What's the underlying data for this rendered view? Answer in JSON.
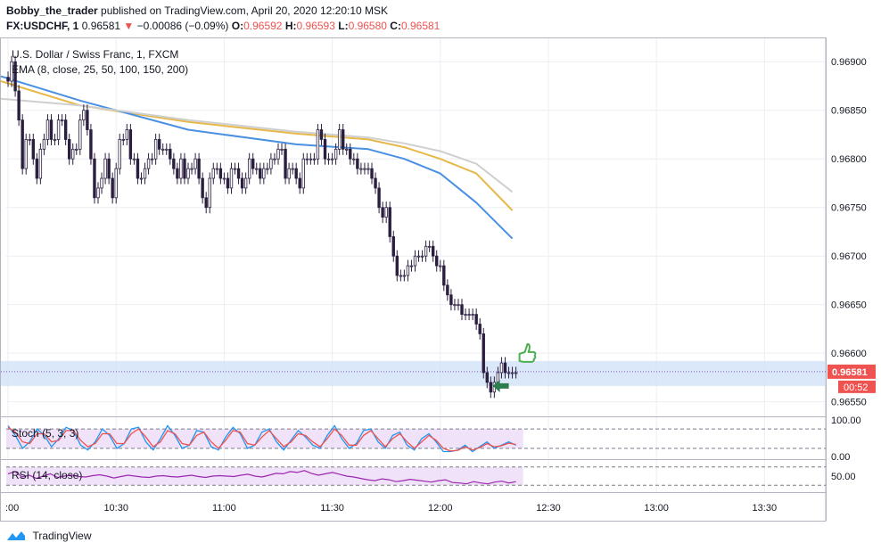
{
  "header": {
    "author": "Bobby_the_trader",
    "published": "published on TradingView.com, April 20, 2020 12:20:10 MSK",
    "symbol": "FX:USDCHF, 1",
    "last": "0.96581",
    "change_arrow": "▼",
    "change": "−0.00086 (−0.09%)",
    "o_label": "O:",
    "o_value": "0.96592",
    "h_label": "H:",
    "h_value": "0.96593",
    "l_label": "L:",
    "l_value": "0.96580",
    "c_label": "C:",
    "c_value": "0.96581"
  },
  "footer": {
    "brand": "TradingView",
    "logo_icon": "tradingview-logo-icon"
  },
  "colors": {
    "candle_down": "#2b1f3f",
    "candle_up": "#2b1f3f",
    "ema_25": "#e6b84a",
    "ema_50": "#4a90e2",
    "ema_100": "#9fc4ef",
    "ema_150": "#cfcfcf",
    "ema_200": "#d9d9d9",
    "stoch_k": "#2196f3",
    "stoch_d": "#ef5350",
    "rsi": "#9c27b0",
    "price_band": "#cfe0f7",
    "price_label_bg": "#ef5350",
    "thumb": "#4caf50",
    "arrow": "#2e7d4f"
  },
  "chart_data": [
    {
      "type": "candlestick",
      "title": "U.S. Dollar / Swiss Franc, 1, FXCM",
      "indicator_label": "EMA (8, close, 25, 50, 100, 150, 200)",
      "y_ticks": [
        0.969,
        0.9685,
        0.968,
        0.9675,
        0.967,
        0.9665,
        0.966,
        0.9655
      ],
      "y_tick_labels": [
        "0.96900",
        "0.96850",
        "0.96800",
        "0.96750",
        "0.96700",
        "0.96650",
        "0.96600",
        "0.96550"
      ],
      "ylim": [
        0.96535,
        0.96925
      ],
      "x_tick_labels": [
        ":00",
        "10:30",
        "11:00",
        "11:30",
        "12:00",
        "12:30",
        "13:00",
        "13:30"
      ],
      "x_tick_minutes": [
        0,
        30,
        60,
        90,
        120,
        150,
        180,
        210
      ],
      "x_range_minutes": [
        -0.5,
        227
      ],
      "last_price_label": "0.96581",
      "countdown_label": "00:52",
      "closes": [
        0.9688,
        0.969,
        0.9687,
        0.9684,
        0.9679,
        0.9682,
        0.9682,
        0.968,
        0.9678,
        0.9681,
        0.9682,
        0.9684,
        0.9682,
        0.9682,
        0.9684,
        0.9684,
        0.9682,
        0.968,
        0.9681,
        0.9681,
        0.9684,
        0.9685,
        0.9683,
        0.968,
        0.9676,
        0.9677,
        0.9678,
        0.968,
        0.9678,
        0.9676,
        0.9679,
        0.9682,
        0.9682,
        0.9683,
        0.968,
        0.968,
        0.9678,
        0.9678,
        0.9679,
        0.968,
        0.968,
        0.9682,
        0.9681,
        0.9681,
        0.9681,
        0.968,
        0.9679,
        0.9678,
        0.968,
        0.9678,
        0.9679,
        0.9679,
        0.968,
        0.9678,
        0.9676,
        0.9675,
        0.9678,
        0.9679,
        0.9679,
        0.9678,
        0.9678,
        0.9677,
        0.9679,
        0.9679,
        0.9678,
        0.9677,
        0.9678,
        0.968,
        0.9679,
        0.9679,
        0.9678,
        0.9679,
        0.9679,
        0.968,
        0.968,
        0.9681,
        0.9681,
        0.9678,
        0.9679,
        0.9679,
        0.9678,
        0.9677,
        0.968,
        0.968,
        0.968,
        0.968,
        0.9683,
        0.9682,
        0.968,
        0.968,
        0.968,
        0.9681,
        0.9683,
        0.9681,
        0.9681,
        0.968,
        0.968,
        0.9679,
        0.9679,
        0.9679,
        0.9679,
        0.9678,
        0.9677,
        0.9675,
        0.9674,
        0.9675,
        0.9672,
        0.967,
        0.9668,
        0.9668,
        0.9668,
        0.9669,
        0.9669,
        0.967,
        0.967,
        0.967,
        0.9671,
        0.9671,
        0.967,
        0.9669,
        0.9669,
        0.9667,
        0.9666,
        0.9665,
        0.9665,
        0.9665,
        0.9664,
        0.9664,
        0.9664,
        0.9664,
        0.9663,
        0.9662,
        0.9658,
        0.9657,
        0.9656,
        0.9657,
        0.9658,
        0.9659,
        0.9658,
        0.9658,
        0.9658,
        0.9658
      ],
      "series": [
        {
          "name": "EMA 25",
          "x": [
            -2,
            20,
            50,
            80,
            100,
            110,
            120,
            130,
            140
          ],
          "values": [
            0.9688,
            0.96855,
            0.96838,
            0.96826,
            0.9682,
            0.96812,
            0.968,
            0.96785,
            0.96747
          ]
        },
        {
          "name": "EMA 50",
          "x": [
            -2,
            20,
            50,
            80,
            100,
            110,
            120,
            130,
            140
          ],
          "values": [
            0.96885,
            0.9686,
            0.9683,
            0.96815,
            0.9681,
            0.968,
            0.96785,
            0.96755,
            0.96718
          ]
        },
        {
          "name": "EMA 150",
          "x": [
            -2,
            20,
            50,
            80,
            100,
            110,
            120,
            130,
            140
          ],
          "values": [
            0.96862,
            0.96855,
            0.9684,
            0.96828,
            0.96822,
            0.96816,
            0.96808,
            0.96795,
            0.96766
          ]
        }
      ]
    },
    {
      "type": "line",
      "title": "Stoch (5, 3, 3)",
      "y_tick_labels": [
        "100.00",
        "0.00"
      ],
      "ylim": [
        -5,
        105
      ],
      "series": [
        {
          "name": "%K",
          "values": [
            90,
            60,
            20,
            40,
            80,
            60,
            25,
            50,
            85,
            75,
            30,
            15,
            40,
            80,
            60,
            20,
            35,
            80,
            85,
            40,
            15,
            50,
            90,
            60,
            20,
            30,
            75,
            70,
            25,
            15,
            55,
            85,
            65,
            20,
            30,
            70,
            80,
            40,
            15,
            45,
            75,
            55,
            30,
            20,
            60,
            90,
            50,
            20,
            35,
            75,
            80,
            40,
            20,
            60,
            70,
            30,
            15,
            50,
            65,
            40,
            10,
            10,
            15,
            30,
            10,
            25,
            40,
            20,
            30,
            40,
            30
          ]
        },
        {
          "name": "%D",
          "values": [
            85,
            70,
            40,
            35,
            65,
            65,
            40,
            45,
            75,
            75,
            45,
            25,
            35,
            65,
            65,
            35,
            35,
            65,
            80,
            55,
            25,
            40,
            75,
            65,
            35,
            30,
            60,
            70,
            40,
            20,
            45,
            75,
            70,
            35,
            30,
            55,
            75,
            50,
            25,
            40,
            65,
            60,
            40,
            25,
            50,
            80,
            60,
            30,
            30,
            60,
            75,
            50,
            25,
            50,
            65,
            40,
            20,
            40,
            60,
            45,
            20,
            12,
            14,
            25,
            15,
            22,
            35,
            25,
            28,
            36,
            32
          ]
        }
      ]
    },
    {
      "type": "line",
      "title": "RSI (14, close)",
      "y_tick_labels": [
        "50.00"
      ],
      "ylim": [
        15,
        85
      ],
      "series": [
        {
          "name": "RSI",
          "values": [
            55,
            60,
            48,
            52,
            45,
            50,
            55,
            47,
            50,
            52,
            49,
            48,
            51,
            53,
            50,
            46,
            49,
            52,
            50,
            48,
            47,
            50,
            51,
            49,
            48,
            50,
            52,
            49,
            47,
            50,
            51,
            50,
            49,
            52,
            54,
            50,
            48,
            52,
            56,
            55,
            60,
            58,
            62,
            56,
            52,
            55,
            58,
            54,
            50,
            48,
            45,
            42,
            40,
            44,
            42,
            38,
            40,
            43,
            41,
            39,
            37,
            40,
            42,
            36,
            35,
            33,
            38,
            35,
            33,
            37,
            39,
            35,
            38
          ]
        }
      ]
    }
  ]
}
